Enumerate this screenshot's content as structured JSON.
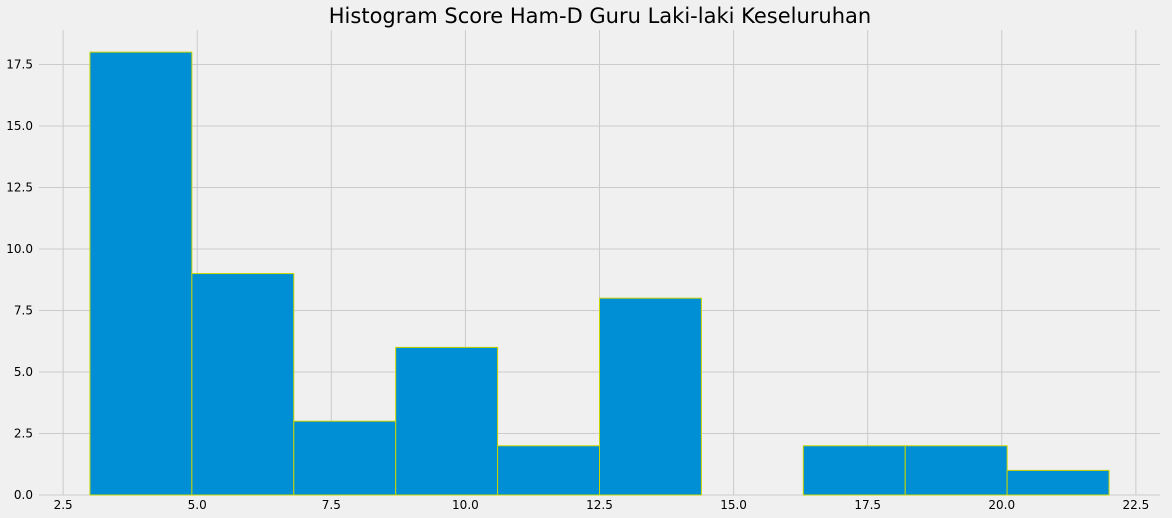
{
  "chart_data": {
    "type": "bar",
    "title": "Histogram Score Ham-D Guru Laki-laki Keseluruhan",
    "xlabel": "",
    "ylabel": "",
    "xlim": [
      2.05,
      22.95
    ],
    "ylim": [
      0,
      18.9
    ],
    "x_ticks": [
      "2.5",
      "5.0",
      "7.5",
      "10.0",
      "12.5",
      "15.0",
      "17.5",
      "20.0",
      "22.5"
    ],
    "x_tick_values": [
      2.5,
      5.0,
      7.5,
      10.0,
      12.5,
      15.0,
      17.5,
      20.0,
      22.5
    ],
    "y_ticks": [
      "0.0",
      "2.5",
      "5.0",
      "7.5",
      "10.0",
      "12.5",
      "15.0",
      "17.5"
    ],
    "y_tick_values": [
      0,
      2.5,
      5.0,
      7.5,
      10.0,
      12.5,
      15.0,
      17.5
    ],
    "bin_edges": [
      3.0,
      4.9,
      6.8,
      8.7,
      10.6,
      12.5,
      14.4,
      16.3,
      18.2,
      20.1,
      22.0
    ],
    "counts": [
      18,
      9,
      3,
      6,
      2,
      8,
      0,
      2,
      2,
      1
    ],
    "grid": true,
    "bar_color": "#008fd5",
    "edge_color": "#c8d400",
    "grid_color": "#cbcbcb",
    "background": "#f0f0f0"
  }
}
